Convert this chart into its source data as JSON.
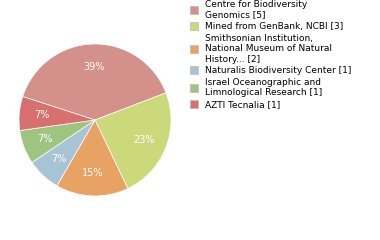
{
  "labels": [
    "Centre for Biodiversity\nGenomics [5]",
    "Mined from GenBank, NCBI [3]",
    "Smithsonian Institution,\nNational Museum of Natural\nHistory... [2]",
    "Naturalis Biodiversity Center [1]",
    "Israel Oceanographic and\nLimnological Research [1]",
    "AZTI Tecnalia [1]"
  ],
  "values": [
    38,
    23,
    15,
    7,
    7,
    7
  ],
  "colors": [
    "#d4908a",
    "#ccd97a",
    "#e8a264",
    "#a8c4d4",
    "#9ec480",
    "#d97070"
  ],
  "autopct_fontsize": 7,
  "legend_fontsize": 6.5,
  "startangle": 162,
  "background_color": "#ffffff"
}
